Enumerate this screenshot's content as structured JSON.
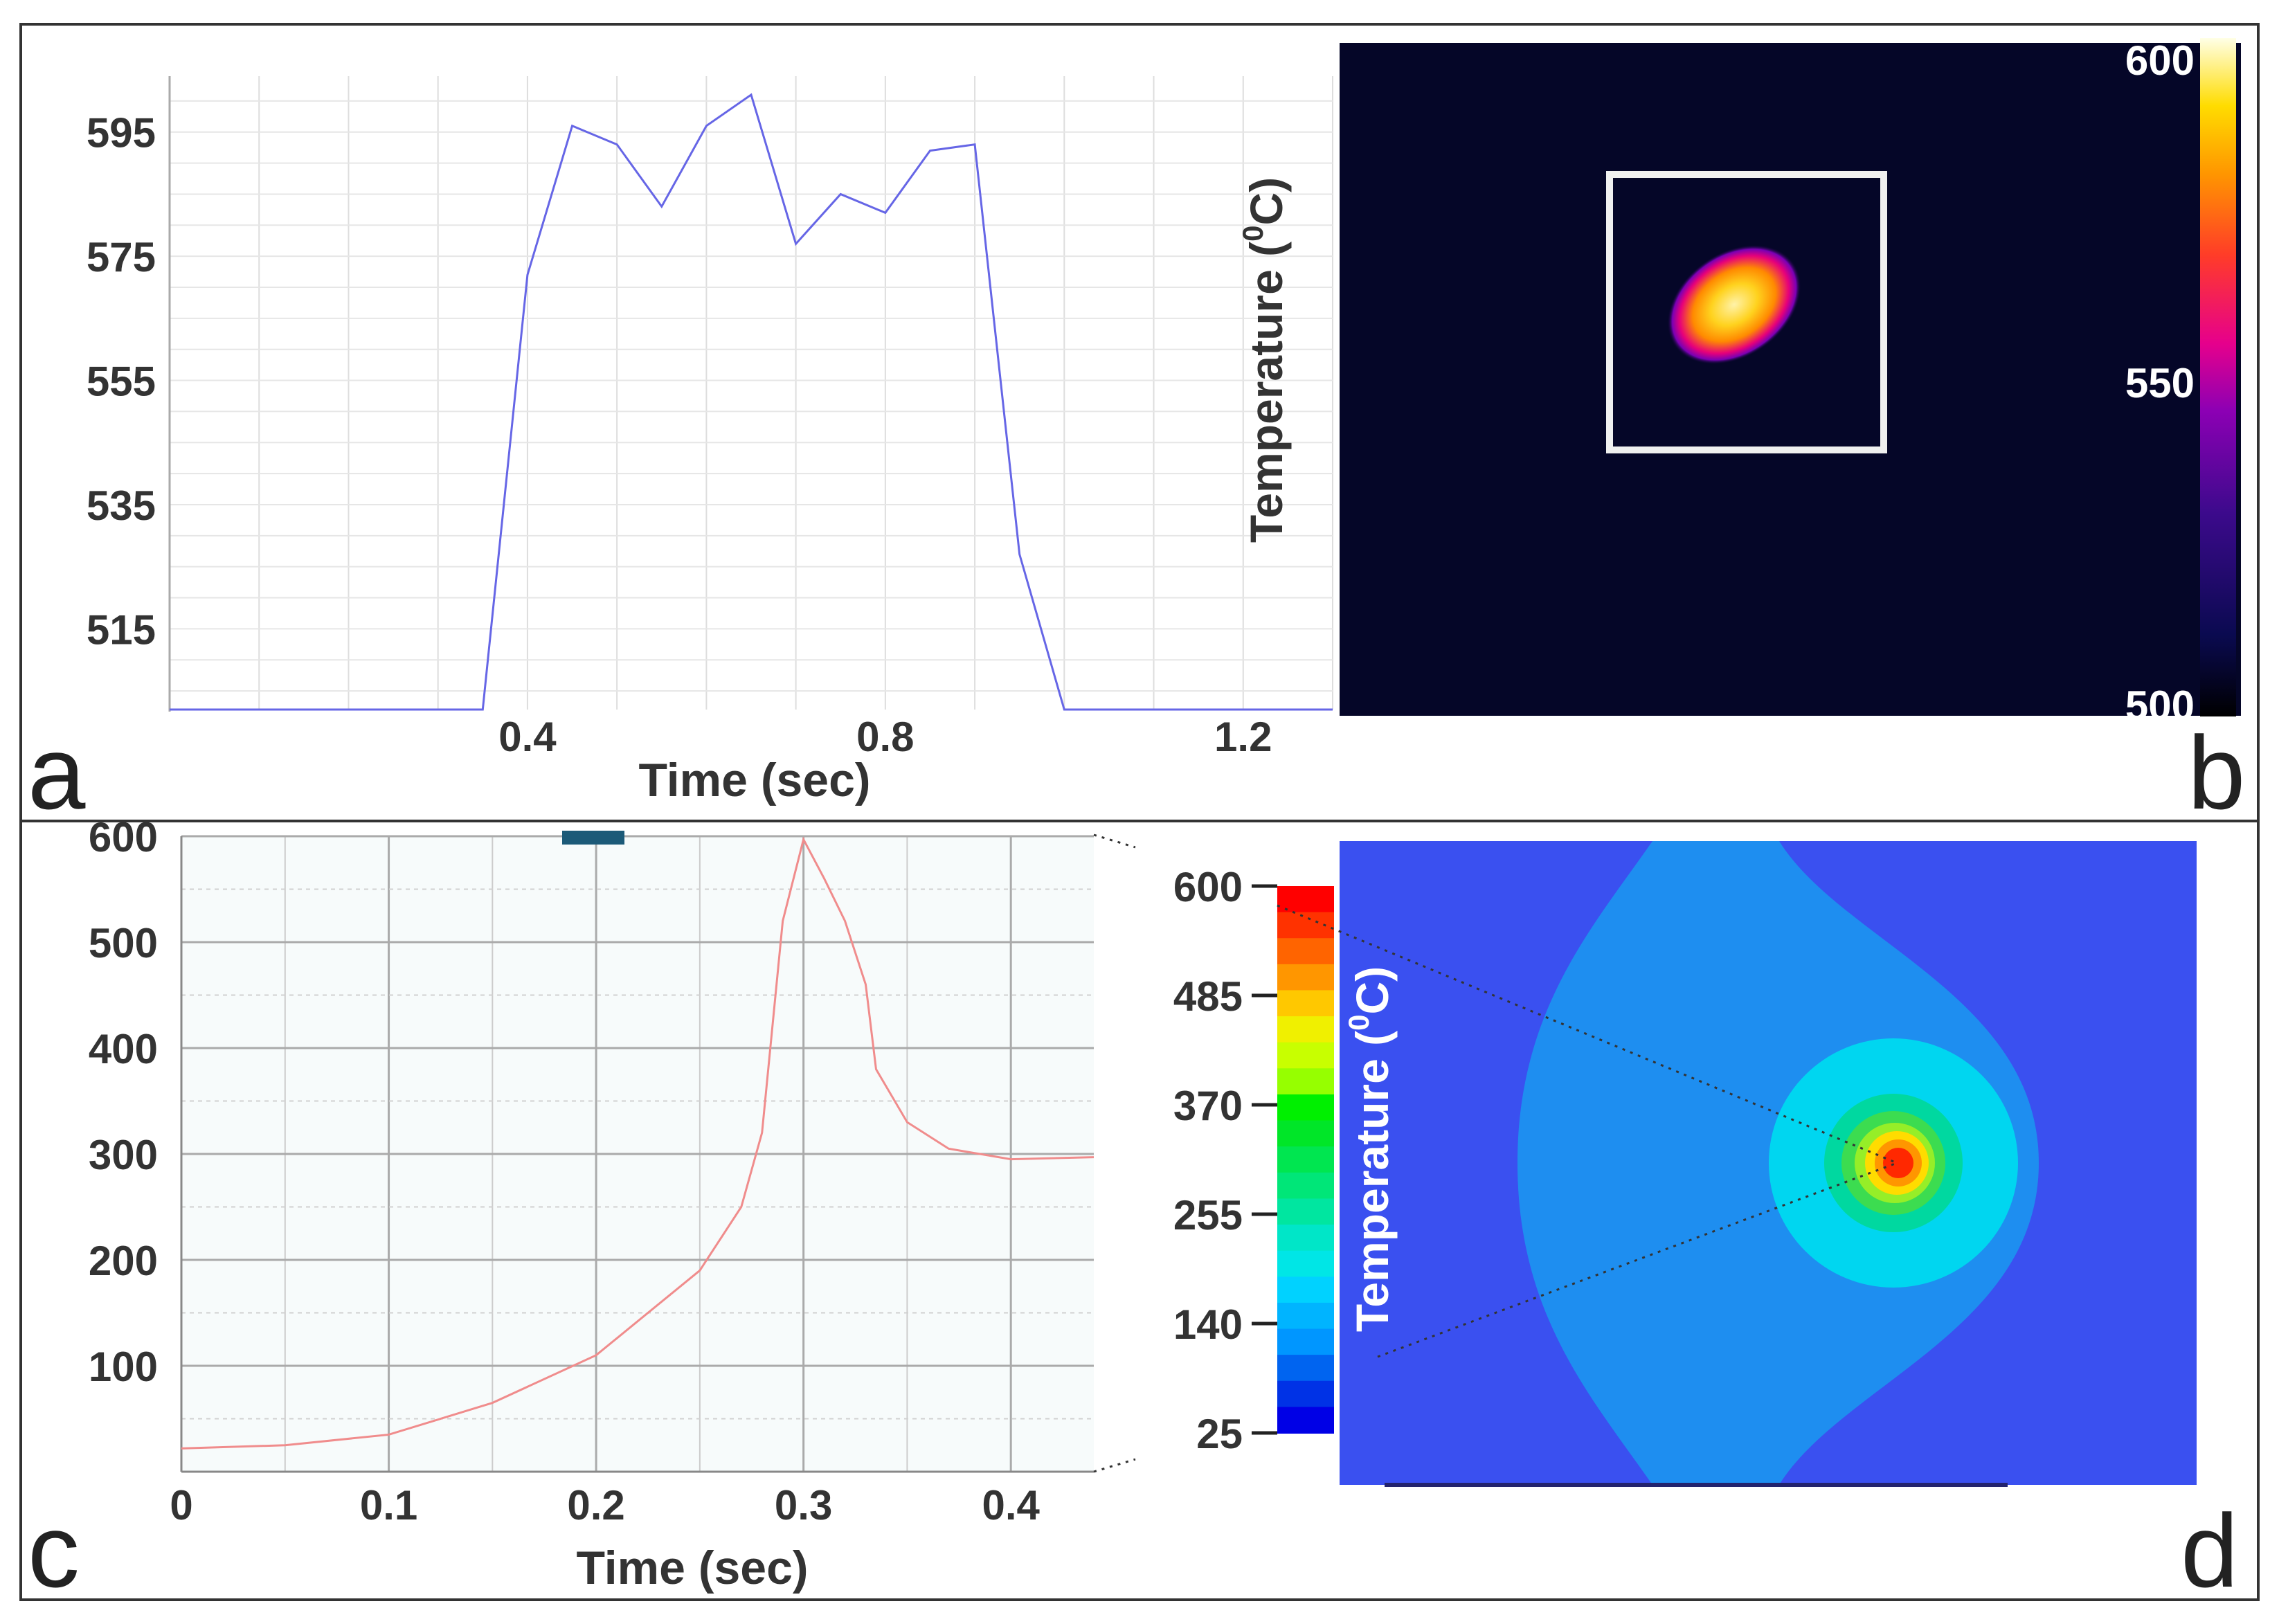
{
  "panels": {
    "a": "a",
    "b": "b",
    "c": "c",
    "d": "d"
  },
  "chart_data": [
    {
      "panel": "a",
      "type": "line",
      "title": "",
      "xlabel": "Time (sec)",
      "ylabel": "",
      "xlim": [
        0.0,
        1.3
      ],
      "ylim": [
        502,
        604
      ],
      "xticks": [
        "0.4",
        "0.8",
        "1.2"
      ],
      "xtick_values": [
        0.4,
        0.8,
        1.2
      ],
      "yticks": [
        "595",
        "575",
        "555",
        "535",
        "515"
      ],
      "ytick_values": [
        595,
        575,
        555,
        535,
        515
      ],
      "color": "#6666e6",
      "x": [
        0.0,
        0.35,
        0.4,
        0.45,
        0.5,
        0.55,
        0.6,
        0.65,
        0.7,
        0.75,
        0.8,
        0.85,
        0.9,
        0.95,
        1.0,
        1.3
      ],
      "y": [
        502,
        502,
        572,
        596,
        593,
        583,
        596,
        601,
        577,
        585,
        582,
        592,
        593,
        527,
        502,
        502
      ]
    },
    {
      "panel": "b",
      "type": "heatmap",
      "title": "",
      "ylabel": "Temperature (⁰C)",
      "ylabel_main": "Temperature (",
      "ylabel_sup": "0",
      "ylabel_end": "C)",
      "colorbar_range": [
        500,
        600
      ],
      "colorbar_ticks": [
        "600",
        "550",
        "500"
      ],
      "colorbar_tick_values": [
        600,
        550,
        500
      ]
    },
    {
      "panel": "c",
      "type": "line",
      "title": "",
      "xlabel": "Time (sec)",
      "ylabel": "",
      "xlim": [
        0.0,
        0.44
      ],
      "ylim": [
        0,
        600
      ],
      "xticks": [
        "0",
        "0.1",
        "0.2",
        "0.3",
        "0.4"
      ],
      "xtick_values": [
        0,
        0.1,
        0.2,
        0.3,
        0.4
      ],
      "yticks": [
        "600",
        "500",
        "400",
        "300",
        "200",
        "100"
      ],
      "ytick_values": [
        600,
        500,
        400,
        300,
        200,
        100
      ],
      "color": "#f08c8c",
      "x": [
        0.0,
        0.05,
        0.1,
        0.15,
        0.2,
        0.25,
        0.27,
        0.28,
        0.29,
        0.3,
        0.31,
        0.32,
        0.33,
        0.335,
        0.35,
        0.37,
        0.4,
        0.44
      ],
      "y": [
        22,
        25,
        35,
        65,
        110,
        190,
        250,
        320,
        520,
        597,
        560,
        520,
        460,
        380,
        330,
        305,
        295,
        297
      ]
    },
    {
      "panel": "d",
      "type": "heatmap",
      "title": "",
      "ylabel": "Temperature (⁰C)",
      "ylabel_main": "Temperature (",
      "ylabel_sup": "0",
      "ylabel_end": "C)",
      "colorbar_range": [
        25,
        600
      ],
      "colorbar_ticks": [
        "600",
        "485",
        "370",
        "255",
        "140",
        "25"
      ],
      "colorbar_tick_values": [
        600,
        485,
        370,
        255,
        140,
        25
      ],
      "colorbar_colors": [
        "#ff0000",
        "#ff3200",
        "#ff6400",
        "#ff9600",
        "#ffc800",
        "#f0f000",
        "#c8ff00",
        "#96ff00",
        "#00f000",
        "#00e628",
        "#00e650",
        "#00e678",
        "#00e6a0",
        "#00e6c8",
        "#00e6e6",
        "#00d2ff",
        "#00b4ff",
        "#0096ff",
        "#0064f0",
        "#0032e6",
        "#0000e6"
      ]
    }
  ]
}
